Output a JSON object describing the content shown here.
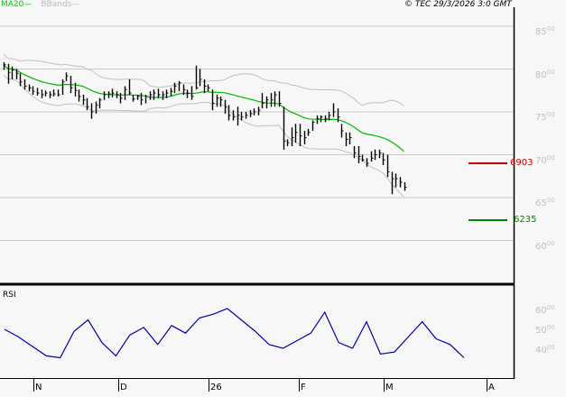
{
  "legend": {
    "ma_label": "MA20",
    "ma_color": "#00cc00",
    "bb_label": "BBands",
    "bb_color": "#bbbbbb"
  },
  "copyright": "© TEC 29/3/2026 3:0 GMT",
  "rsi_panel": {
    "label": "RSI"
  },
  "price_axis": {
    "labels": [
      {
        "main": "85",
        "sup": "00",
        "value": 8500
      },
      {
        "main": "80",
        "sup": "00",
        "value": 8000
      },
      {
        "main": "75",
        "sup": "00",
        "value": 7500
      },
      {
        "main": "70",
        "sup": "00",
        "value": 7000
      },
      {
        "main": "65",
        "sup": "00",
        "value": 6500
      },
      {
        "main": "60",
        "sup": "00",
        "value": 6000
      }
    ]
  },
  "rsi_axis": {
    "labels": [
      {
        "main": "60",
        "sup": "00",
        "value": 60
      },
      {
        "main": "50",
        "sup": "00",
        "value": 50
      },
      {
        "main": "40",
        "sup": "00",
        "value": 40
      }
    ]
  },
  "levels": {
    "resistance": {
      "label": "6903",
      "value": 6903,
      "color": "#cc0000"
    },
    "support": {
      "label": "6235",
      "value": 6235,
      "color": "#008800"
    }
  },
  "time_axis": {
    "labels": [
      "N",
      "D",
      "26",
      "F",
      "M",
      "A"
    ]
  },
  "colors": {
    "background": "#f7f7f7",
    "grid": "#c8c8c8",
    "bars": "#000000",
    "rsi_line": "#0000aa",
    "ma_line": "#00bb00",
    "bbands": "#c0c0c0",
    "frame": "#000000"
  },
  "chart_data": [
    {
      "type": "line",
      "title": "Price (OHLC bars) with MA20 and Bollinger Bands",
      "xlabel": "",
      "ylabel": "",
      "ylim": [
        5500,
        8700
      ],
      "x_ticks": [
        "N",
        "D",
        "26",
        "F",
        "M",
        "A"
      ],
      "y_ticks": [
        6000,
        6500,
        7000,
        7500,
        8000,
        8500
      ],
      "grid": true,
      "legend": [
        "MA20",
        "BBands"
      ],
      "annotations": [
        {
          "label": "6903",
          "type": "resistance",
          "value": 6903
        },
        {
          "label": "6235",
          "type": "support",
          "value": 6235
        }
      ],
      "bars_hlc": [
        [
          8080,
          7990,
          8050
        ],
        [
          8060,
          7830,
          7960
        ],
        [
          8030,
          7880,
          7990
        ],
        [
          8000,
          7880,
          7950
        ],
        [
          7950,
          7800,
          7850
        ],
        [
          7880,
          7760,
          7800
        ],
        [
          7820,
          7740,
          7780
        ],
        [
          7800,
          7700,
          7740
        ],
        [
          7780,
          7690,
          7720
        ],
        [
          7760,
          7660,
          7700
        ],
        [
          7750,
          7680,
          7720
        ],
        [
          7740,
          7660,
          7700
        ],
        [
          7760,
          7680,
          7710
        ],
        [
          7760,
          7680,
          7700
        ],
        [
          7880,
          7700,
          7850
        ],
        [
          7960,
          7860,
          7920
        ],
        [
          7920,
          7720,
          7780
        ],
        [
          7840,
          7680,
          7750
        ],
        [
          7760,
          7620,
          7680
        ],
        [
          7700,
          7580,
          7640
        ],
        [
          7660,
          7520,
          7560
        ],
        [
          7600,
          7420,
          7500
        ],
        [
          7620,
          7480,
          7580
        ],
        [
          7660,
          7540,
          7640
        ],
        [
          7740,
          7640,
          7700
        ],
        [
          7740,
          7660,
          7710
        ],
        [
          7770,
          7670,
          7720
        ],
        [
          7740,
          7660,
          7700
        ],
        [
          7720,
          7600,
          7660
        ],
        [
          7800,
          7640,
          7760
        ],
        [
          7880,
          7700,
          7720
        ],
        [
          7700,
          7620,
          7650
        ],
        [
          7700,
          7640,
          7680
        ],
        [
          7720,
          7580,
          7640
        ],
        [
          7700,
          7600,
          7680
        ],
        [
          7740,
          7640,
          7700
        ],
        [
          7760,
          7640,
          7720
        ],
        [
          7770,
          7660,
          7700
        ],
        [
          7740,
          7640,
          7700
        ],
        [
          7760,
          7660,
          7720
        ],
        [
          7780,
          7680,
          7740
        ],
        [
          7840,
          7720,
          7800
        ],
        [
          7860,
          7740,
          7840
        ],
        [
          7820,
          7700,
          7760
        ],
        [
          7760,
          7660,
          7720
        ],
        [
          7800,
          7640,
          7680
        ],
        [
          8040,
          7760,
          7780
        ],
        [
          8000,
          7800,
          7880
        ],
        [
          7880,
          7720,
          7800
        ],
        [
          7820,
          7740,
          7780
        ],
        [
          7760,
          7520,
          7600
        ],
        [
          7700,
          7560,
          7660
        ],
        [
          7680,
          7560,
          7640
        ],
        [
          7640,
          7480,
          7560
        ],
        [
          7580,
          7400,
          7460
        ],
        [
          7520,
          7400,
          7440
        ],
        [
          7560,
          7340,
          7460
        ],
        [
          7500,
          7400,
          7440
        ],
        [
          7500,
          7420,
          7460
        ],
        [
          7520,
          7440,
          7480
        ],
        [
          7540,
          7460,
          7500
        ],
        [
          7560,
          7460,
          7520
        ],
        [
          7720,
          7540,
          7600
        ],
        [
          7680,
          7540,
          7640
        ],
        [
          7720,
          7560,
          7640
        ],
        [
          7740,
          7560,
          7700
        ],
        [
          7740,
          7560,
          7600
        ],
        [
          7560,
          7060,
          7160
        ],
        [
          7180,
          7100,
          7140
        ],
        [
          7320,
          7100,
          7200
        ],
        [
          7360,
          7140,
          7260
        ],
        [
          7360,
          7100,
          7220
        ],
        [
          7280,
          7120,
          7200
        ],
        [
          7300,
          7220,
          7260
        ],
        [
          7400,
          7280,
          7380
        ],
        [
          7460,
          7360,
          7420
        ],
        [
          7460,
          7380,
          7440
        ],
        [
          7460,
          7380,
          7420
        ],
        [
          7500,
          7400,
          7460
        ],
        [
          7600,
          7440,
          7500
        ],
        [
          7540,
          7380,
          7440
        ],
        [
          7360,
          7200,
          7280
        ],
        [
          7260,
          7100,
          7180
        ],
        [
          7260,
          7120,
          7200
        ],
        [
          7100,
          6960,
          7020
        ],
        [
          7100,
          6900,
          6980
        ],
        [
          7000,
          6920,
          6940
        ],
        [
          6960,
          6860,
          6900
        ],
        [
          7040,
          6920,
          6960
        ],
        [
          7060,
          6940,
          7000
        ],
        [
          7060,
          6960,
          7020
        ],
        [
          7020,
          6880,
          6940
        ],
        [
          7000,
          6740,
          6800
        ],
        [
          6800,
          6540,
          6720
        ],
        [
          6780,
          6620,
          6720
        ],
        [
          6740,
          6620,
          6680
        ],
        [
          6680,
          6580,
          6620
        ]
      ],
      "series": [
        {
          "name": "MA20",
          "values_sample": [
            8040,
            7950,
            7820,
            7780,
            7720,
            7680,
            7700,
            7720,
            7800,
            7760,
            7620,
            7560,
            7420,
            7380,
            7200,
            6920
          ]
        },
        {
          "name": "RSI",
          "values_sample": [
            50,
            46,
            41,
            36,
            35,
            49,
            55,
            43,
            36,
            47,
            51,
            42,
            52,
            48,
            56,
            58,
            61,
            55,
            49,
            42,
            40,
            44,
            48,
            59,
            43,
            40,
            54,
            37,
            38,
            46,
            54,
            45,
            42,
            35
          ]
        }
      ]
    }
  ]
}
